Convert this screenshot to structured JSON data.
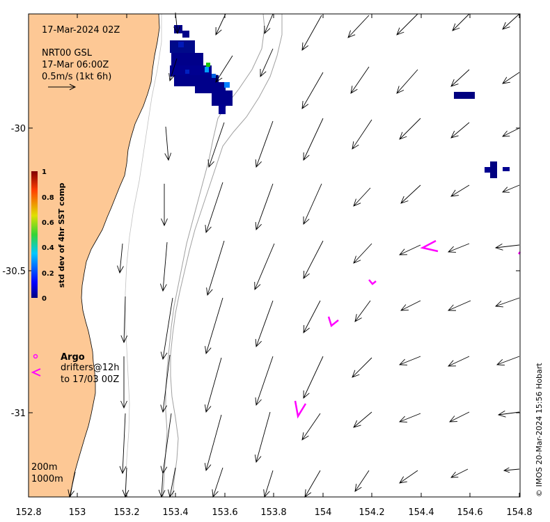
{
  "map": {
    "date_label": "17-Mar-2024 02Z",
    "product": "NRT00 GSL",
    "valid_time": "17-Mar 06:00Z",
    "scale_label": "0.5m/s (1kt 6h)",
    "x_ticks": [
      "152.8",
      "153",
      "153.2",
      "153.4",
      "153.6",
      "153.8",
      "154",
      "154.2",
      "154.4",
      "154.6",
      "154.8"
    ],
    "y_ticks": [
      "-30",
      "-30.5",
      "-31"
    ],
    "colorbar": {
      "title": "std dev of 4hr SST comp",
      "ticks": [
        "1",
        "0.8",
        "0.6",
        "0.4",
        "0.2",
        "0"
      ]
    },
    "legend": {
      "argo": "Argo",
      "drifters": "drifters@12h",
      "drifters_period": "to 17/03 00Z"
    },
    "isobaths": [
      "200m",
      "1000m"
    ],
    "credit": "© IMOS 20-Mar-2024 15:56 Hobart",
    "colors": {
      "land": "#fdc895",
      "arrow": "#000000",
      "drifter": "#ff00ff",
      "isobath": "#a0a0a0",
      "sst_low": "#000080"
    }
  }
}
